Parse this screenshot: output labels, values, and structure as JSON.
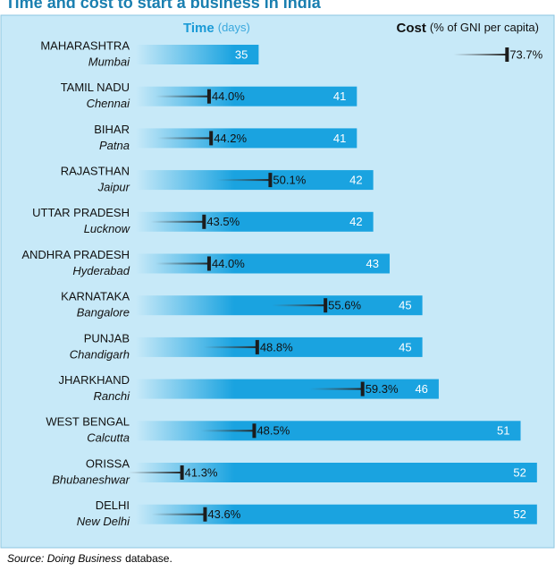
{
  "chart_data": {
    "type": "bar",
    "title": "Time and cost to start a business in India",
    "categories": [
      "MAHARASHTRA",
      "TAMIL NADU",
      "BIHAR",
      "RAJASTHAN",
      "UTTAR PRADESH",
      "ANDHRA PRADESH",
      "KARNATAKA",
      "PUNJAB",
      "JHARKHAND",
      "WEST BENGAL",
      "ORISSA",
      "DELHI"
    ],
    "cities": [
      "Mumbai",
      "Chennai",
      "Patna",
      "Jaipur",
      "Lucknow",
      "Hyderabad",
      "Bangalore",
      "Chandigarh",
      "Ranchi",
      "Calcutta",
      "Bhubaneshwar",
      "New Delhi"
    ],
    "series": [
      {
        "name": "Time",
        "unit": "(days)",
        "color": "#1aa3e0",
        "values": [
          35,
          41,
          41,
          42,
          42,
          43,
          45,
          45,
          46,
          51,
          52,
          52
        ]
      },
      {
        "name": "Cost",
        "unit": "(% of GNI per capita)",
        "color": "#1c1c1c",
        "axis": "x2",
        "values": [
          73.7,
          44.0,
          44.2,
          50.1,
          43.5,
          44.0,
          55.6,
          48.8,
          59.3,
          48.5,
          41.3,
          43.6
        ],
        "value_labels": [
          "73.7%",
          "44.0%",
          "44.2%",
          "50.1%",
          "43.5%",
          "44.0%",
          "55.6%",
          "48.8%",
          "59.3%",
          "48.5%",
          "41.3%",
          "43.6%"
        ]
      }
    ],
    "xlim": [
      27.5,
      52.5
    ],
    "x2lim": [
      36.7,
      77.5
    ],
    "source_italic": "Source: Doing Business",
    "source_text": "database."
  }
}
